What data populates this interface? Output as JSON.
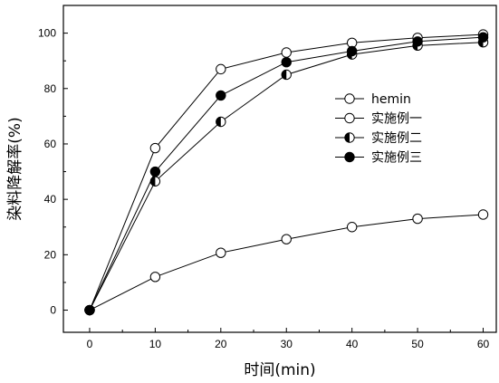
{
  "chart_data": {
    "type": "line",
    "xlabel": "时间(min)",
    "ylabel": "染料降解率(%)",
    "xlim": [
      -4,
      62
    ],
    "ylim": [
      -8,
      110
    ],
    "xticks": [
      0,
      10,
      20,
      30,
      40,
      50,
      60
    ],
    "yticks": [
      0,
      20,
      40,
      60,
      80,
      100
    ],
    "grid": false,
    "legend_position": "right",
    "series": [
      {
        "name": "hemin",
        "marker": "open",
        "x": [
          0,
          10,
          20,
          30,
          40,
          50,
          60
        ],
        "y": [
          0,
          12,
          20.7,
          25.6,
          30,
          33,
          34.5
        ]
      },
      {
        "name": "实施例一",
        "marker": "open",
        "x": [
          0,
          10,
          20,
          30,
          40,
          50,
          60
        ],
        "y": [
          0,
          58.5,
          87,
          93,
          96.5,
          98.3,
          99.5
        ]
      },
      {
        "name": "实施例二",
        "marker": "half",
        "x": [
          0,
          10,
          20,
          30,
          40,
          50,
          60
        ],
        "y": [
          0,
          46.5,
          68,
          85,
          92.3,
          95.5,
          96.7
        ]
      },
      {
        "name": "实施例三",
        "marker": "filled",
        "x": [
          0,
          10,
          20,
          30,
          40,
          50,
          60
        ],
        "y": [
          0,
          50,
          77.5,
          89.5,
          93.5,
          97,
          98.5
        ]
      }
    ]
  }
}
